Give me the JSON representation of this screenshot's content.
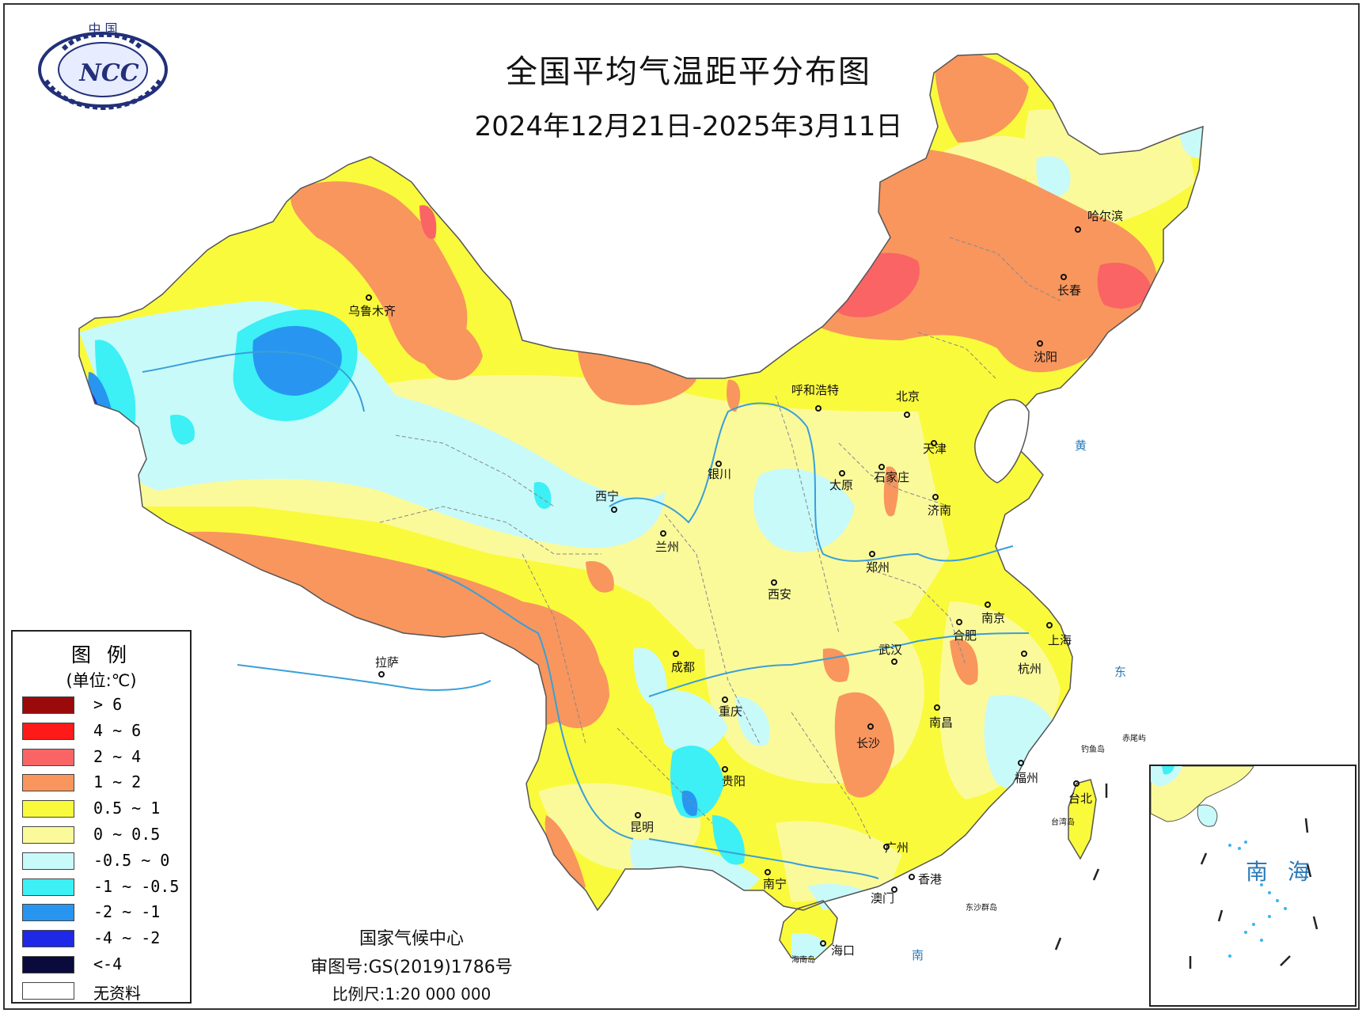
{
  "header": {
    "title": "全国平均气温距平分布图",
    "subtitle": "2024年12月21日-2025年3月11日"
  },
  "logo": {
    "top_text": "中 国",
    "mark": "NCC"
  },
  "legend": {
    "title": "图 例",
    "unit": "(单位:℃)",
    "items": [
      {
        "label": "> 6",
        "color": "#9b0a0a"
      },
      {
        "label": "4 ~ 6",
        "color": "#ff1a1a"
      },
      {
        "label": "2 ~ 4",
        "color": "#fa6464"
      },
      {
        "label": "1 ~ 2",
        "color": "#f8965e"
      },
      {
        "label": "0.5 ~ 1",
        "color": "#fafa3c"
      },
      {
        "label": "0 ~ 0.5",
        "color": "#fafa9b"
      },
      {
        "label": "-0.5 ~ 0",
        "color": "#c8fafa"
      },
      {
        "label": "-1 ~ -0.5",
        "color": "#3cf0f5"
      },
      {
        "label": "-2 ~ -1",
        "color": "#2896f0"
      },
      {
        "label": "-4 ~ -2",
        "color": "#1e28e6"
      },
      {
        "label": "<-4",
        "color": "#0a0a3c"
      },
      {
        "label": "无资料",
        "color": "#ffffff"
      }
    ]
  },
  "credits": {
    "agency": "国家气候中心",
    "approval": "审图号:GS(2019)1786号",
    "scale": "比例尺:1:20 000 000"
  },
  "inset": {
    "label": "南 海"
  },
  "cities": [
    {
      "name": "乌鲁木齐"
    },
    {
      "name": "拉萨"
    },
    {
      "name": "西宁"
    },
    {
      "name": "兰州"
    },
    {
      "name": "银川"
    },
    {
      "name": "呼和浩特"
    },
    {
      "name": "北京"
    },
    {
      "name": "天津"
    },
    {
      "name": "太原"
    },
    {
      "name": "石家庄"
    },
    {
      "name": "济南"
    },
    {
      "name": "郑州"
    },
    {
      "name": "西安"
    },
    {
      "name": "成都"
    },
    {
      "name": "重庆"
    },
    {
      "name": "贵阳"
    },
    {
      "name": "昆明"
    },
    {
      "name": "南宁"
    },
    {
      "name": "广州"
    },
    {
      "name": "香港"
    },
    {
      "name": "澳门"
    },
    {
      "name": "海口"
    },
    {
      "name": "长沙"
    },
    {
      "name": "武汉"
    },
    {
      "name": "南昌"
    },
    {
      "name": "合肥"
    },
    {
      "name": "南京"
    },
    {
      "name": "上海"
    },
    {
      "name": "杭州"
    },
    {
      "name": "福州"
    },
    {
      "name": "台北"
    },
    {
      "name": "沈阳"
    },
    {
      "name": "长春"
    },
    {
      "name": "哈尔滨"
    }
  ],
  "map_labels": {
    "yellow_sea": "黄",
    "east_sea": "东",
    "south_sea": "南",
    "hainan_island": "海南岛",
    "taiwan_island": "台湾岛",
    "diaoyu": "钓鱼岛",
    "chiwei": "赤尾屿",
    "dongsha": "东沙群岛"
  }
}
